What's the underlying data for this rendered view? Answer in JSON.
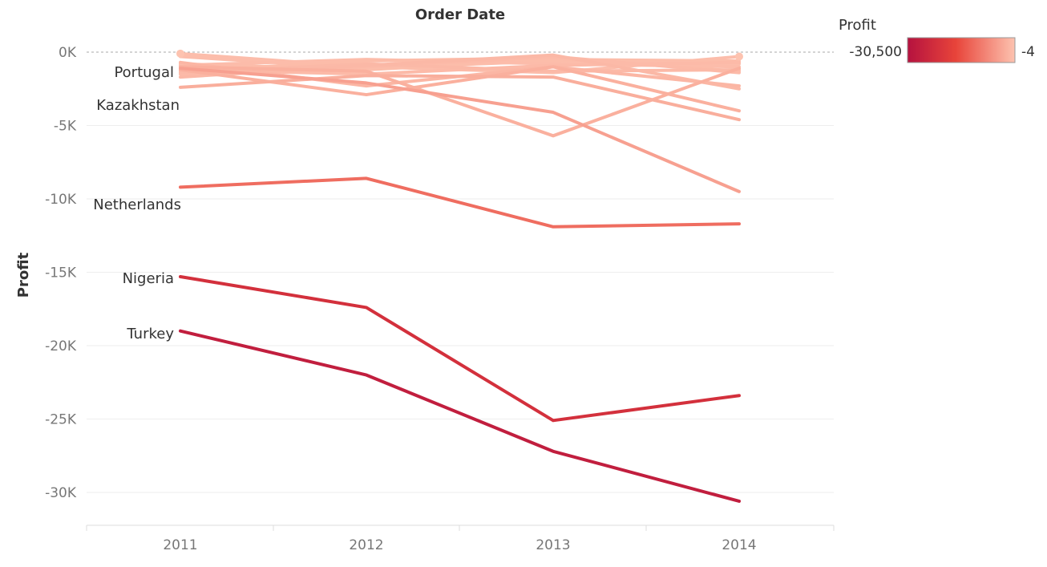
{
  "chart_data": {
    "type": "line",
    "title": "Order Date",
    "xlabel": "",
    "ylabel": "Profit",
    "x": [
      "2011",
      "2012",
      "2013",
      "2014"
    ],
    "ylim": [
      -32500,
      1500
    ],
    "y_ticks": [
      0,
      -5000,
      -10000,
      -15000,
      -20000,
      -25000,
      -30000
    ],
    "y_tick_labels": [
      "0K",
      "-5K",
      "-10K",
      "-15K",
      "-20K",
      "-25K",
      "-30K"
    ],
    "grid": true,
    "legend": {
      "title": "Profit",
      "type": "color-gradient",
      "position": "top-right",
      "min_label": "-30,500",
      "max_label": "-4",
      "min_value": -30500,
      "max_value": -4,
      "color_low": "#b5123f",
      "color_mid": "#e8443a",
      "color_high": "#fdc3b0"
    },
    "series": [
      {
        "name": "Turkey",
        "values": [
          -19000,
          -22000,
          -27200,
          -30600
        ]
      },
      {
        "name": "Nigeria",
        "values": [
          -15300,
          -17400,
          -25100,
          -23400
        ]
      },
      {
        "name": "Netherlands",
        "values": [
          -9200,
          -8600,
          -11900,
          -11700
        ]
      },
      {
        "name": "Kazakhstan",
        "values": [
          -1100,
          -2100,
          -4100,
          -9500
        ]
      },
      {
        "values": [
          -1000,
          -1300,
          -5700,
          -1100
        ]
      },
      {
        "values": [
          -2400,
          -1600,
          -1700,
          -4600
        ]
      },
      {
        "name": "Portugal",
        "values": [
          -1200,
          -2900,
          -1000,
          -4000
        ]
      },
      {
        "values": [
          -1300,
          -600,
          -400,
          -1300
        ]
      },
      {
        "values": [
          -700,
          -2300,
          -1000,
          -2300
        ]
      },
      {
        "values": [
          -1700,
          -900,
          -200,
          -2500
        ]
      },
      {
        "values": [
          -900,
          -500,
          -800,
          -1000
        ]
      },
      {
        "values": [
          -800,
          -1200,
          -500,
          -600
        ]
      },
      {
        "values": [
          -1400,
          -800,
          -1300,
          -1200
        ]
      },
      {
        "values": [
          -300,
          -1100,
          -600,
          -800
        ]
      },
      {
        "values": [
          -100,
          -1000,
          -1400,
          -300
        ]
      },
      {
        "values": [
          -1500,
          -1000,
          -300,
          -1400
        ]
      },
      {
        "values": [
          -1200,
          -1500,
          -900,
          -700
        ]
      }
    ]
  }
}
